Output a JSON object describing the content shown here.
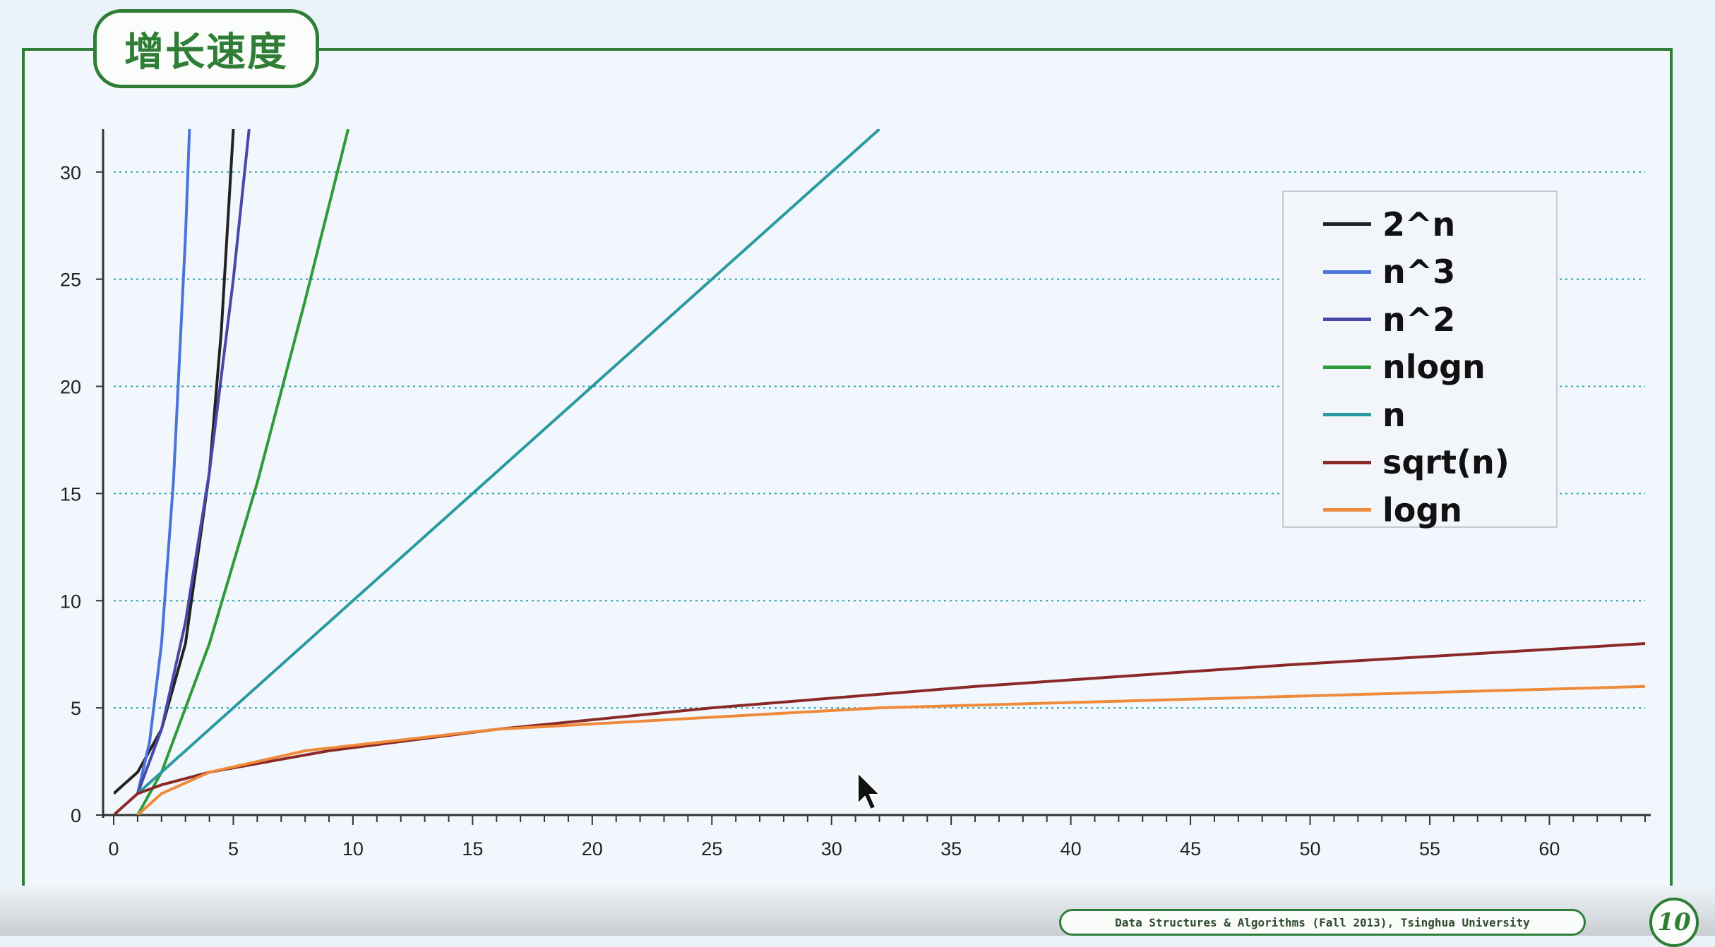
{
  "slide": {
    "title": "增长速度",
    "footer": "Data Structures & Algorithms (Fall 2013), Tsinghua University",
    "page_number": "10"
  },
  "chart_data": {
    "type": "line",
    "title": "",
    "xlabel": "",
    "ylabel": "",
    "xlim": [
      0,
      64
    ],
    "ylim": [
      0,
      32
    ],
    "x_ticks": [
      0,
      5,
      10,
      15,
      20,
      25,
      30,
      35,
      40,
      45,
      50,
      55,
      60
    ],
    "y_ticks": [
      0,
      5,
      10,
      15,
      20,
      25,
      30
    ],
    "grid": "horizontal dotted",
    "legend_position": "top-right",
    "series": [
      {
        "name": "2^n",
        "color": "#222222",
        "x": [
          0,
          1,
          2,
          3,
          4,
          4.5,
          5
        ],
        "y": [
          1,
          2,
          4,
          8,
          16,
          22.6,
          32
        ]
      },
      {
        "name": "n^3",
        "color": "#4a74d8",
        "x": [
          1,
          1.5,
          2,
          2.5,
          3,
          3.17
        ],
        "y": [
          1,
          3.4,
          8,
          15.6,
          27,
          32
        ]
      },
      {
        "name": "n^2",
        "color": "#4848a8",
        "x": [
          1,
          2,
          3,
          4,
          5,
          5.66
        ],
        "y": [
          1,
          4,
          9,
          16,
          25,
          32
        ]
      },
      {
        "name": "nlogn",
        "color": "#2e9a3a",
        "x": [
          1,
          2,
          4,
          6,
          8,
          9.8
        ],
        "y": [
          0,
          2,
          8,
          15.5,
          24,
          32
        ]
      },
      {
        "name": "n",
        "color": "#2a9aa0",
        "x": [
          1,
          32
        ],
        "y": [
          1,
          32
        ]
      },
      {
        "name": "sqrt(n)",
        "color": "#8a2a28",
        "x": [
          0,
          1,
          2,
          4,
          9,
          16,
          25,
          36,
          49,
          64
        ],
        "y": [
          0,
          1,
          1.41,
          2,
          3,
          4,
          5,
          6,
          7,
          8
        ]
      },
      {
        "name": "logn",
        "color": "#ee8a3a",
        "x": [
          1,
          2,
          4,
          8,
          16,
          32,
          64
        ],
        "y": [
          0,
          1,
          2,
          3,
          4,
          5,
          6
        ]
      }
    ]
  }
}
